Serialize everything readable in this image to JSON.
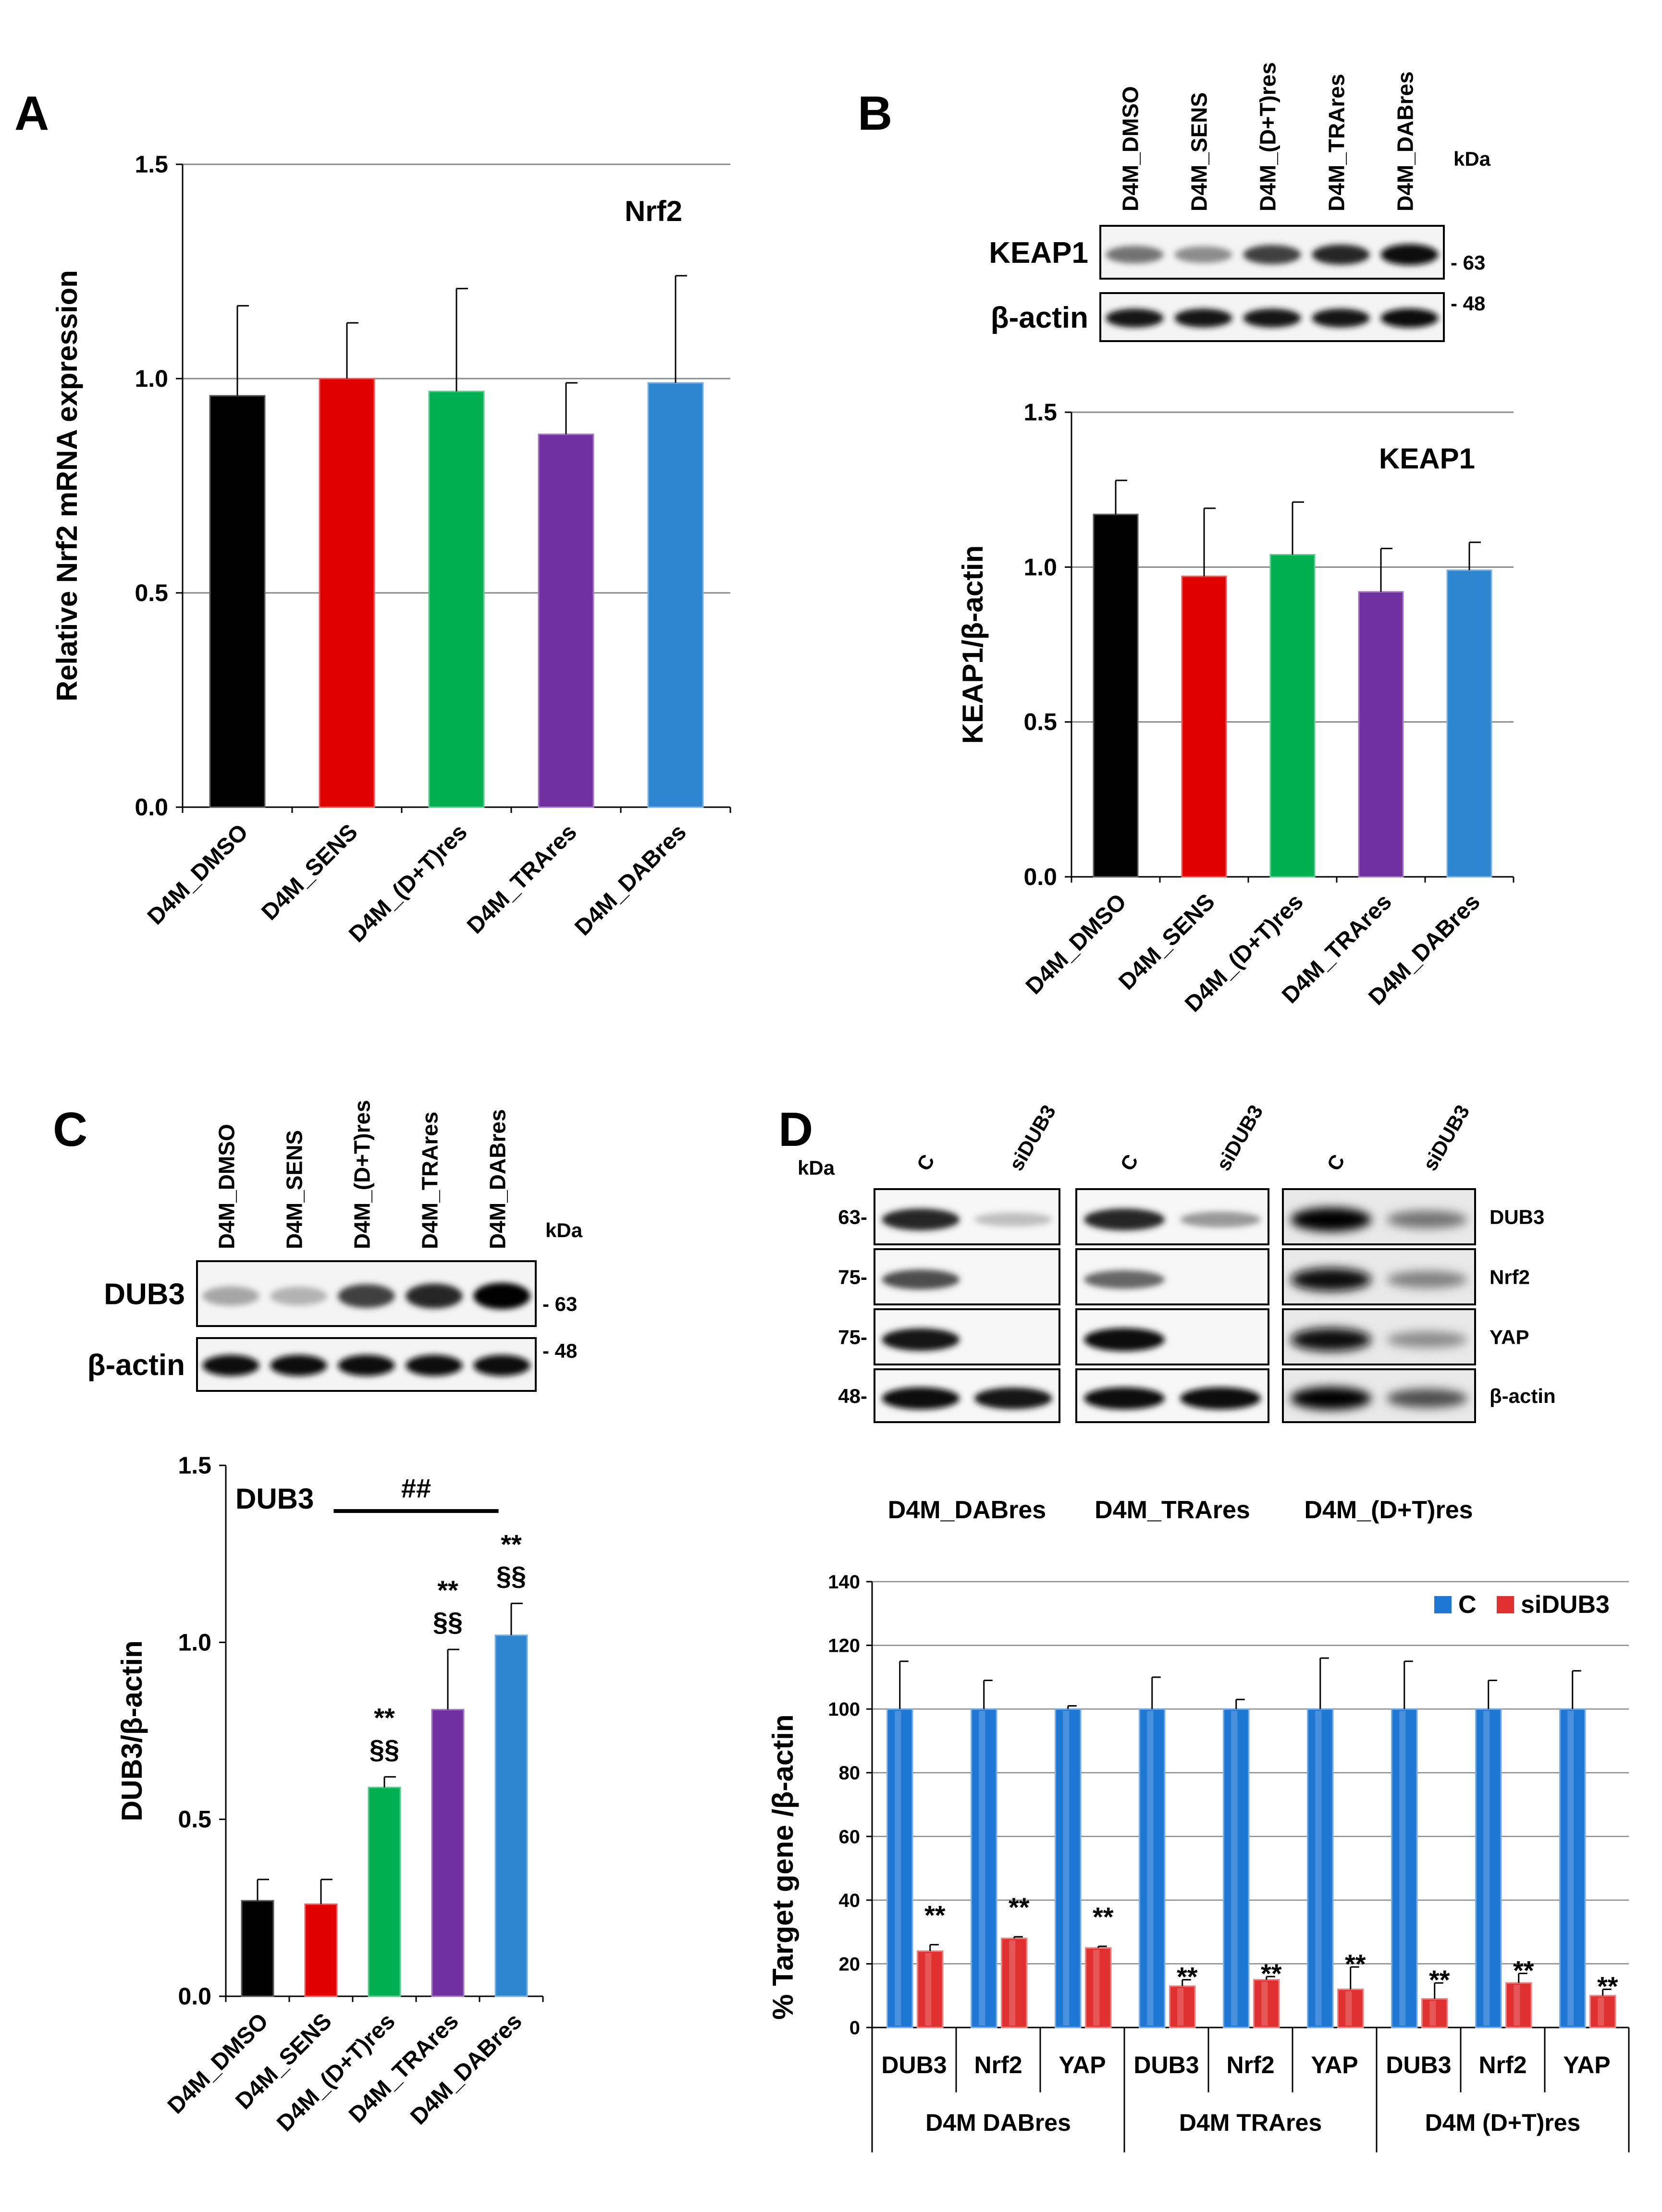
{
  "panel_labels": [
    "A",
    "B",
    "C",
    "D"
  ],
  "colors": {
    "DMSO": "#000000",
    "SENS": "#e00000",
    "DT": "#00b050",
    "TRA": "#7030a0",
    "DAB": "#2e86d1",
    "siC": "#1f77d4",
    "siDUB3": "#e03030",
    "grid": "#8a8a8a"
  },
  "blots": {
    "B": {
      "lanes": [
        "D4M_DMSO",
        "D4M_SENS",
        "D4M_(D+T)res",
        "D4M_TRAres",
        "D4M_DABres"
      ],
      "kda_label": "kDa",
      "rows": [
        {
          "protein": "KEAP1",
          "kda": "- 63",
          "intensity": [
            0.55,
            0.45,
            0.75,
            0.85,
            0.95
          ]
        },
        {
          "protein": "β-actin",
          "kda": "- 48",
          "intensity": [
            0.9,
            0.9,
            0.9,
            0.9,
            0.95
          ]
        }
      ]
    },
    "C": {
      "lanes": [
        "D4M_DMSO",
        "D4M_SENS",
        "D4M_(D+T)res",
        "D4M_TRAres",
        "D4M_DABres"
      ],
      "kda_label": "kDa",
      "rows": [
        {
          "protein": "DUB3",
          "kda": "- 63",
          "intensity": [
            0.35,
            0.3,
            0.75,
            0.85,
            1.0
          ]
        },
        {
          "protein": "β-actin",
          "kda": "- 48",
          "intensity": [
            0.95,
            0.95,
            0.95,
            0.95,
            0.95
          ]
        }
      ]
    },
    "D": {
      "kda_label": "kDa",
      "lane_labels": [
        "C",
        "siDUB3"
      ],
      "groups": [
        "D4M_DABres",
        "D4M_TRAres",
        "D4M_(D+T)res"
      ],
      "markers": [
        "63-",
        "75-",
        "75-",
        "48-"
      ],
      "proteins": [
        "DUB3",
        "Nrf2",
        "YAP",
        "β-actin"
      ]
    }
  },
  "chart_data": [
    {
      "id": "A",
      "type": "bar",
      "title": "Nrf2",
      "ylabel": "Relative Nrf2  mRNA expression",
      "xlabel": "",
      "ylim": [
        0,
        1.5
      ],
      "yticks": [
        "0.0",
        "0.5",
        "1.0",
        "1.5"
      ],
      "grid": true,
      "categories": [
        "D4M_DMSO",
        "D4M_SENS",
        "D4M_(D+T)res",
        "D4M_TRAres",
        "D4M_DABres"
      ],
      "values": [
        0.96,
        1.0,
        0.97,
        0.87,
        0.99
      ],
      "errors": [
        0.21,
        0.13,
        0.24,
        0.12,
        0.25
      ]
    },
    {
      "id": "B",
      "type": "bar",
      "title": "KEAP1",
      "ylabel": "KEAP1/β-actin",
      "xlabel": "",
      "ylim": [
        0,
        1.5
      ],
      "yticks": [
        "0.0",
        "0.5",
        "1.0",
        "1.5"
      ],
      "grid": true,
      "categories": [
        "D4M_DMSO",
        "D4M_SENS",
        "D4M_(D+T)res",
        "D4M_TRAres",
        "D4M_DABres"
      ],
      "values": [
        1.17,
        0.97,
        1.04,
        0.92,
        0.99
      ],
      "errors": [
        0.11,
        0.22,
        0.17,
        0.14,
        0.09
      ]
    },
    {
      "id": "C",
      "type": "bar",
      "title": "DUB3",
      "ylabel": "DUB3/β-actin",
      "xlabel": "",
      "ylim": [
        0,
        1.5
      ],
      "yticks": [
        "0.0",
        "0.5",
        "1.0",
        "1.5"
      ],
      "grid": false,
      "categories": [
        "D4M_DMSO",
        "D4M_SENS",
        "D4M_(D+T)res",
        "D4M_TRAres",
        "D4M_DABres"
      ],
      "values": [
        0.27,
        0.26,
        0.59,
        0.81,
        1.02
      ],
      "errors": [
        0.06,
        0.07,
        0.03,
        0.17,
        0.09
      ],
      "annotations": [
        "",
        "",
        "**\n§§",
        "**\n§§",
        "**\n§§"
      ],
      "bracket_label": "##"
    },
    {
      "id": "D",
      "type": "bar",
      "title": "",
      "ylabel": "% Target gene /β-actin",
      "xlabel": "",
      "ylim": [
        0,
        140
      ],
      "yticks": [
        "0",
        "20",
        "40",
        "60",
        "80",
        "100",
        "120",
        "140"
      ],
      "grid": true,
      "legend": "top-right",
      "categories": [
        "DUB3",
        "Nrf2",
        "YAP",
        "DUB3",
        "Nrf2",
        "YAP",
        "DUB3",
        "Nrf2",
        "YAP"
      ],
      "groups": [
        "D4M  DABres",
        "D4M  TRAres",
        "D4M  (D+T)res"
      ],
      "series": [
        {
          "name": "C",
          "values": [
            100,
            100,
            100,
            100,
            100,
            100,
            100,
            100,
            100
          ],
          "errors": [
            15,
            9,
            1,
            10,
            3,
            16,
            15,
            9,
            12
          ]
        },
        {
          "name": "siDUB3",
          "values": [
            24,
            28,
            25,
            13,
            15,
            12,
            9,
            14,
            10
          ],
          "errors": [
            2,
            0.5,
            0.5,
            2,
            1,
            7,
            5,
            3,
            2
          ]
        }
      ],
      "annotation": "**"
    }
  ]
}
